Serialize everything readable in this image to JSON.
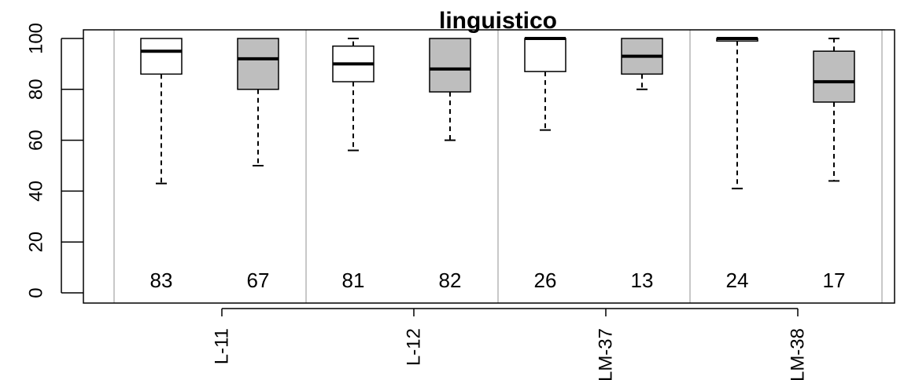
{
  "chart_data": {
    "type": "boxplot",
    "title": "linguistico",
    "xlabel": "",
    "ylabel": "",
    "ylim": [
      0,
      100
    ],
    "yticks": [
      0,
      20,
      40,
      60,
      80,
      100
    ],
    "groups": [
      "L-11",
      "L-12",
      "LM-37",
      "LM-38"
    ],
    "series": [
      {
        "color": "#ffffff"
      },
      {
        "color": "#bebebe"
      }
    ],
    "boxes": [
      {
        "group": "L-11",
        "series": 0,
        "min": 43,
        "q1": 86,
        "median": 95,
        "q3": 100,
        "max": 100,
        "n": "83"
      },
      {
        "group": "L-11",
        "series": 1,
        "min": 50,
        "q1": 80,
        "median": 92,
        "q3": 100,
        "max": 100,
        "n": "67"
      },
      {
        "group": "L-12",
        "series": 0,
        "min": 56,
        "q1": 83,
        "median": 90,
        "q3": 97,
        "max": 100,
        "n": "81"
      },
      {
        "group": "L-12",
        "series": 1,
        "min": 60,
        "q1": 79,
        "median": 88,
        "q3": 100,
        "max": 100,
        "n": "82"
      },
      {
        "group": "LM-37",
        "series": 0,
        "min": 64,
        "q1": 87,
        "median": 100,
        "q3": 100,
        "max": 100,
        "n": "26"
      },
      {
        "group": "LM-37",
        "series": 1,
        "min": 80,
        "q1": 86,
        "median": 93,
        "q3": 100,
        "max": 100,
        "n": "13"
      },
      {
        "group": "LM-38",
        "series": 0,
        "min": 41,
        "q1": 99,
        "median": 100,
        "q3": 100,
        "max": 100,
        "n": "24"
      },
      {
        "group": "LM-38",
        "series": 1,
        "min": 44,
        "q1": 75,
        "median": 83,
        "q3": 95,
        "max": 100,
        "n": "17"
      }
    ]
  }
}
